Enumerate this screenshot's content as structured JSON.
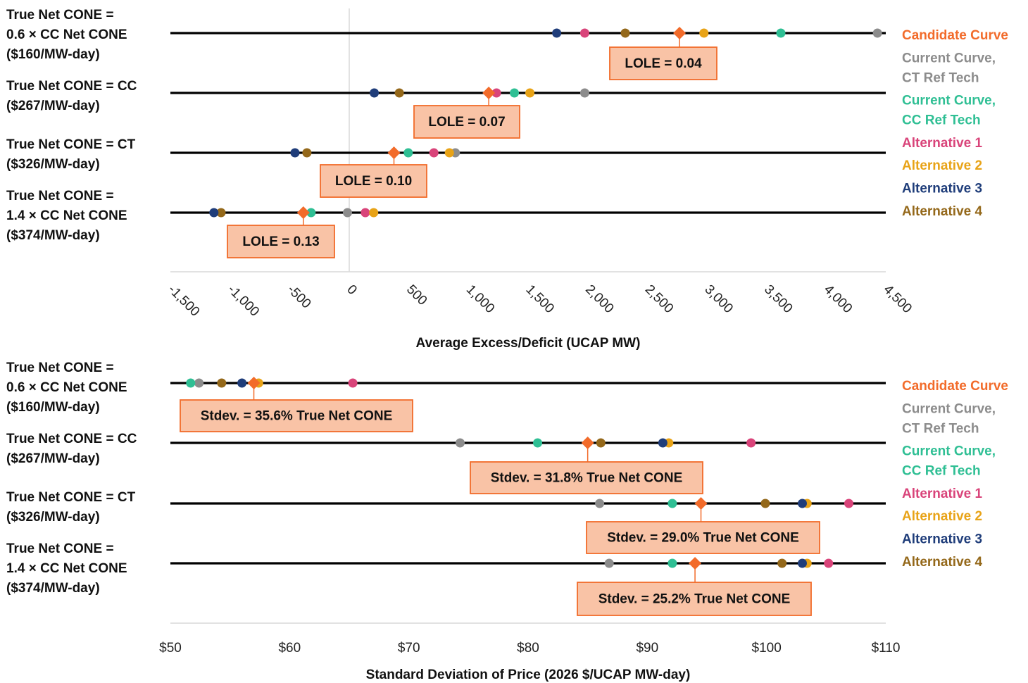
{
  "colors": {
    "candidate": "#F26B2A",
    "current_ct": "#8C8C8C",
    "current_cc": "#2FBF94",
    "alt1": "#D9447A",
    "alt2": "#E8A317",
    "alt3": "#1F3D7A",
    "alt4": "#94681A",
    "callout_fill": "#F9C3A6",
    "callout_border": "#F26B2A"
  },
  "legend": [
    {
      "key": "candidate",
      "lines": [
        "Candidate Curve"
      ]
    },
    {
      "key": "current_ct",
      "lines": [
        "Current Curve,",
        "CT Ref Tech"
      ]
    },
    {
      "key": "current_cc",
      "lines": [
        "Current Curve,",
        "CC Ref Tech"
      ]
    },
    {
      "key": "alt1",
      "lines": [
        "Alternative 1"
      ]
    },
    {
      "key": "alt2",
      "lines": [
        "Alternative 2"
      ]
    },
    {
      "key": "alt3",
      "lines": [
        "Alternative 3"
      ]
    },
    {
      "key": "alt4",
      "lines": [
        "Alternative 4"
      ]
    }
  ],
  "chart_data": [
    {
      "type": "scatter",
      "xlabel": "Average Excess/Deficit (UCAP MW)",
      "xlim": [
        -1500,
        4500
      ],
      "xticks": [
        -1500,
        -1000,
        -500,
        0,
        500,
        1000,
        1500,
        2000,
        2500,
        3000,
        3500,
        4000,
        4500
      ],
      "xtick_labels": [
        "-1,500",
        "-1,000",
        "-500",
        "0",
        "500",
        "1,000",
        "1,500",
        "2,000",
        "2,500",
        "3,000",
        "3,500",
        "4,000",
        "4,500"
      ],
      "tick_rotation": 45,
      "zero_line": true,
      "rows": [
        {
          "label": [
            "True Net CONE =",
            "0.6 × CC Net CONE",
            "($160/MW-day)"
          ],
          "points": {
            "alt3": 1740,
            "alt1": 1975,
            "alt4": 2315,
            "candidate": 2770,
            "alt2": 2975,
            "current_cc": 3620,
            "current_ct": 4430
          },
          "callout": "LOLE = 0.04"
        },
        {
          "label": [
            "True Net CONE =  CC",
            "($267/MW-day)"
          ],
          "points": {
            "alt3": 210,
            "alt4": 420,
            "candidate": 1170,
            "alt1": 1235,
            "current_cc": 1385,
            "alt2": 1515,
            "current_ct": 1975
          },
          "callout": "LOLE = 0.07"
        },
        {
          "label": [
            "True Net CONE =  CT",
            "($326/MW-day)"
          ],
          "points": {
            "alt3": -455,
            "alt4": -355,
            "candidate": 375,
            "current_cc": 495,
            "alt1": 710,
            "alt2": 840,
            "current_ct": 890
          },
          "callout": "LOLE = 0.10"
        },
        {
          "label": [
            "True Net CONE =",
            "1.4 × CC Net CONE",
            "($374/MW-day)"
          ],
          "points": {
            "alt3": -1135,
            "alt4": -1075,
            "candidate": -385,
            "current_cc": -320,
            "current_ct": -15,
            "alt1": 135,
            "alt2": 205
          },
          "callout": "LOLE = 0.13"
        }
      ]
    },
    {
      "type": "scatter",
      "xlabel": "Standard Deviation of Price (2026 $/UCAP MW-day)",
      "xlim": [
        50,
        110
      ],
      "xticks": [
        50,
        60,
        70,
        80,
        90,
        100,
        110
      ],
      "xtick_labels": [
        "$50",
        "$60",
        "$70",
        "$80",
        "$90",
        "$100",
        "$110"
      ],
      "tick_rotation": 0,
      "zero_line": false,
      "rows": [
        {
          "label": [
            "True Net CONE =",
            "0.6 × CC Net CONE",
            "($160/MW-day)"
          ],
          "points": {
            "current_cc": 51.7,
            "current_ct": 52.4,
            "alt4": 54.3,
            "alt3": 56.0,
            "candidate": 57.0,
            "alt2": 57.4,
            "alt1": 65.3
          },
          "callout": "Stdev. = 35.6% True Net CONE"
        },
        {
          "label": [
            "True Net CONE =  CC",
            "($267/MW-day)"
          ],
          "points": {
            "current_ct": 74.3,
            "current_cc": 80.8,
            "candidate": 85.0,
            "alt4": 86.1,
            "alt3": 91.3,
            "alt2": 91.8,
            "alt1": 98.7
          },
          "callout": "Stdev. = 31.8% True Net CONE"
        },
        {
          "label": [
            "True Net CONE =  CT",
            "($326/MW-day)"
          ],
          "points": {
            "current_ct": 86.0,
            "current_cc": 92.1,
            "candidate": 94.5,
            "alt4": 99.9,
            "alt3": 103.0,
            "alt2": 103.4,
            "alt1": 106.9
          },
          "callout": "Stdev. = 29.0% True Net CONE"
        },
        {
          "label": [
            "True Net CONE =",
            "1.4 × CC Net CONE",
            "($374/MW-day)"
          ],
          "points": {
            "current_ct": 86.8,
            "current_cc": 92.1,
            "candidate": 94.0,
            "alt4": 101.3,
            "alt3": 103.0,
            "alt2": 103.4,
            "alt1": 105.2
          },
          "callout": "Stdev. = 25.2% True Net CONE"
        }
      ]
    }
  ]
}
